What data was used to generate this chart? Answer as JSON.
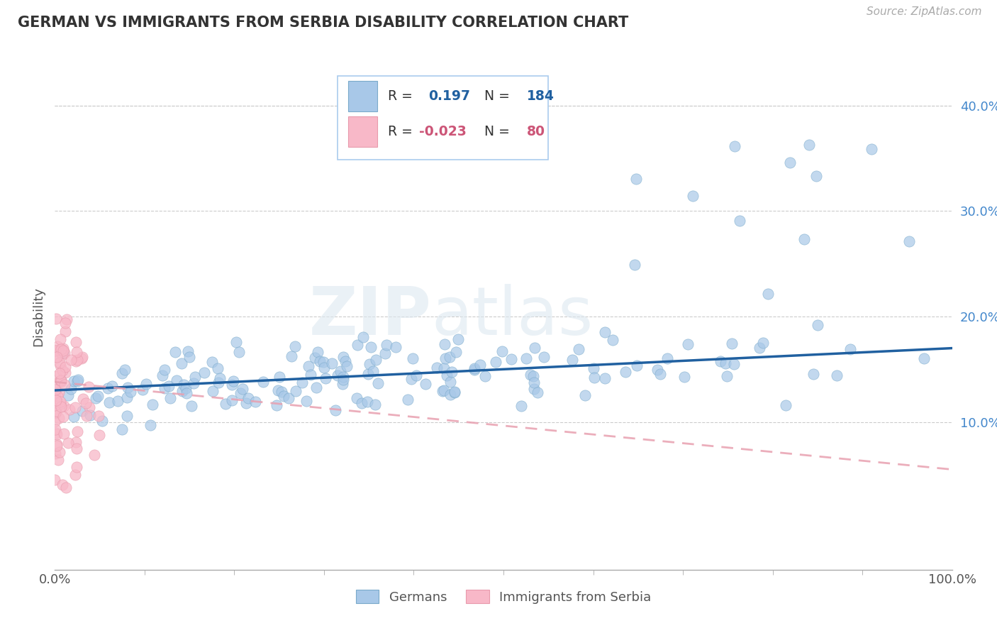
{
  "title": "GERMAN VS IMMIGRANTS FROM SERBIA DISABILITY CORRELATION CHART",
  "source": "Source: ZipAtlas.com",
  "ylabel": "Disability",
  "xlim": [
    0.0,
    1.0
  ],
  "ylim": [
    -0.04,
    0.44
  ],
  "yticks": [
    0.1,
    0.2,
    0.3,
    0.4
  ],
  "ytick_labels": [
    "10.0%",
    "20.0%",
    "30.0%",
    "40.0%"
  ],
  "blue_color": "#a8c8e8",
  "blue_edge_color": "#7aaaca",
  "pink_color": "#f8b8c8",
  "pink_edge_color": "#e89aac",
  "blue_line_color": "#2060a0",
  "pink_line_color": "#e8a0b0",
  "blue_n": 184,
  "pink_n": 80,
  "watermark_zip": "ZIP",
  "watermark_atlas": "atlas",
  "background_color": "#ffffff",
  "grid_color": "#cccccc",
  "blue_line_start": 0.13,
  "blue_line_end": 0.17,
  "pink_line_start": 0.138,
  "pink_line_end": 0.055
}
